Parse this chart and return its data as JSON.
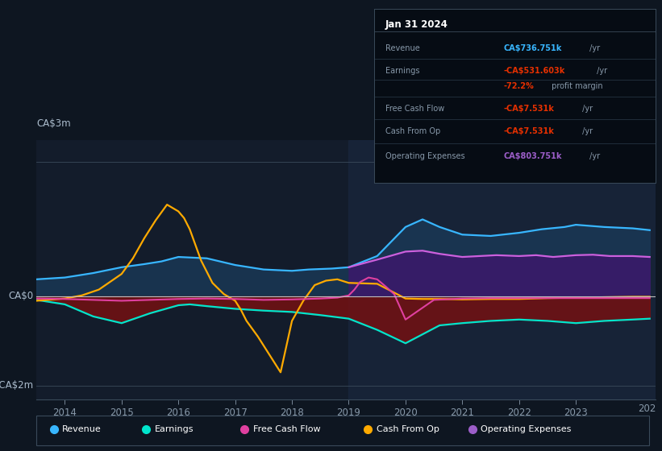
{
  "bg_color": "#0e1621",
  "plot_bg_color": "#131c2b",
  "ylabel_top": "CA$3m",
  "ylabel_zero": "CA$0",
  "ylabel_bottom": "-CA$2m",
  "xlim": [
    2013.5,
    2024.4
  ],
  "ylim": [
    -2.3,
    3.5
  ],
  "title_box": {
    "date": "Jan 31 2024",
    "rows": [
      {
        "label": "Revenue",
        "value": "CA$736.751k",
        "suffix": " /yr",
        "value_color": "#38b6ff"
      },
      {
        "label": "Earnings",
        "value": "-CA$531.603k",
        "suffix": " /yr",
        "value_color": "#e63000"
      },
      {
        "label": "",
        "value": "-72.2%",
        "suffix": " profit margin",
        "value_color": "#e63000"
      },
      {
        "label": "Free Cash Flow",
        "value": "-CA$7.531k",
        "suffix": " /yr",
        "value_color": "#e63000"
      },
      {
        "label": "Cash From Op",
        "value": "-CA$7.531k",
        "suffix": " /yr",
        "value_color": "#e63000"
      },
      {
        "label": "Operating Expenses",
        "value": "CA$803.751k",
        "suffix": " /yr",
        "value_color": "#9c5ec9"
      }
    ]
  },
  "legend": [
    {
      "label": "Revenue",
      "color": "#38b6ff"
    },
    {
      "label": "Earnings",
      "color": "#00e5cc"
    },
    {
      "label": "Free Cash Flow",
      "color": "#e040a0"
    },
    {
      "label": "Cash From Op",
      "color": "#ffaa00"
    },
    {
      "label": "Operating Expenses",
      "color": "#9c5ec9"
    }
  ],
  "revenue_x": [
    2013.5,
    2014.0,
    2014.5,
    2015.0,
    2015.4,
    2015.7,
    2016.0,
    2016.5,
    2017.0,
    2017.5,
    2018.0,
    2018.3,
    2018.7,
    2019.0,
    2019.5,
    2020.0,
    2020.3,
    2020.6,
    2021.0,
    2021.5,
    2022.0,
    2022.4,
    2022.8,
    2023.0,
    2023.5,
    2024.0,
    2024.3
  ],
  "revenue_y": [
    0.38,
    0.42,
    0.52,
    0.65,
    0.72,
    0.78,
    0.88,
    0.85,
    0.7,
    0.6,
    0.57,
    0.6,
    0.62,
    0.65,
    0.9,
    1.55,
    1.72,
    1.55,
    1.38,
    1.35,
    1.42,
    1.5,
    1.55,
    1.6,
    1.55,
    1.52,
    1.48
  ],
  "earnings_x": [
    2013.5,
    2014.0,
    2014.5,
    2015.0,
    2015.5,
    2016.0,
    2016.2,
    2016.5,
    2017.0,
    2017.5,
    2018.0,
    2018.5,
    2019.0,
    2019.5,
    2020.0,
    2020.3,
    2020.6,
    2021.0,
    2021.5,
    2022.0,
    2022.5,
    2023.0,
    2023.5,
    2024.0,
    2024.3
  ],
  "earnings_y": [
    -0.08,
    -0.18,
    -0.45,
    -0.6,
    -0.38,
    -0.2,
    -0.18,
    -0.22,
    -0.28,
    -0.32,
    -0.35,
    -0.42,
    -0.5,
    -0.75,
    -1.05,
    -0.85,
    -0.65,
    -0.6,
    -0.55,
    -0.52,
    -0.55,
    -0.6,
    -0.55,
    -0.52,
    -0.5
  ],
  "cash_from_op_x": [
    2013.5,
    2014.0,
    2014.3,
    2014.6,
    2015.0,
    2015.2,
    2015.4,
    2015.6,
    2015.8,
    2016.0,
    2016.1,
    2016.2,
    2016.4,
    2016.6,
    2016.8,
    2017.0,
    2017.1,
    2017.2,
    2017.4,
    2017.6,
    2017.8,
    2018.0,
    2018.2,
    2018.4,
    2018.6,
    2018.8,
    2019.0,
    2019.5,
    2020.0,
    2020.3,
    2020.6,
    2021.0,
    2021.5,
    2022.0,
    2022.5,
    2023.0,
    2023.5,
    2024.0,
    2024.3
  ],
  "cash_from_op_y": [
    -0.1,
    -0.05,
    0.02,
    0.15,
    0.5,
    0.85,
    1.3,
    1.7,
    2.05,
    1.9,
    1.75,
    1.5,
    0.8,
    0.3,
    0.05,
    -0.1,
    -0.3,
    -0.55,
    -0.9,
    -1.3,
    -1.7,
    -0.55,
    -0.1,
    0.25,
    0.35,
    0.38,
    0.3,
    0.28,
    -0.05,
    -0.06,
    -0.06,
    -0.07,
    -0.06,
    -0.06,
    -0.04,
    -0.03,
    -0.02,
    -0.01,
    -0.01
  ],
  "free_cash_flow_x": [
    2013.5,
    2014.0,
    2014.5,
    2015.0,
    2015.5,
    2016.0,
    2016.5,
    2017.0,
    2017.5,
    2018.0,
    2018.5,
    2018.8,
    2019.0,
    2019.1,
    2019.2,
    2019.35,
    2019.5,
    2019.65,
    2019.8,
    2020.0,
    2020.5,
    2021.0,
    2021.5,
    2022.0,
    2022.5,
    2023.0,
    2023.5,
    2024.0,
    2024.3
  ],
  "free_cash_flow_y": [
    -0.05,
    -0.06,
    -0.08,
    -0.1,
    -0.08,
    -0.06,
    -0.05,
    -0.06,
    -0.08,
    -0.07,
    -0.05,
    -0.03,
    0.02,
    0.15,
    0.32,
    0.42,
    0.38,
    0.22,
    0.05,
    -0.52,
    -0.08,
    -0.05,
    -0.04,
    -0.04,
    -0.04,
    -0.04,
    -0.04,
    -0.04,
    -0.04
  ],
  "op_expenses_x": [
    2019.0,
    2019.5,
    2020.0,
    2020.3,
    2020.6,
    2021.0,
    2021.3,
    2021.6,
    2022.0,
    2022.3,
    2022.6,
    2023.0,
    2023.3,
    2023.6,
    2024.0,
    2024.3
  ],
  "op_expenses_y": [
    0.65,
    0.82,
    1.0,
    1.02,
    0.95,
    0.88,
    0.9,
    0.92,
    0.9,
    0.92,
    0.88,
    0.92,
    0.93,
    0.9,
    0.9,
    0.88
  ]
}
